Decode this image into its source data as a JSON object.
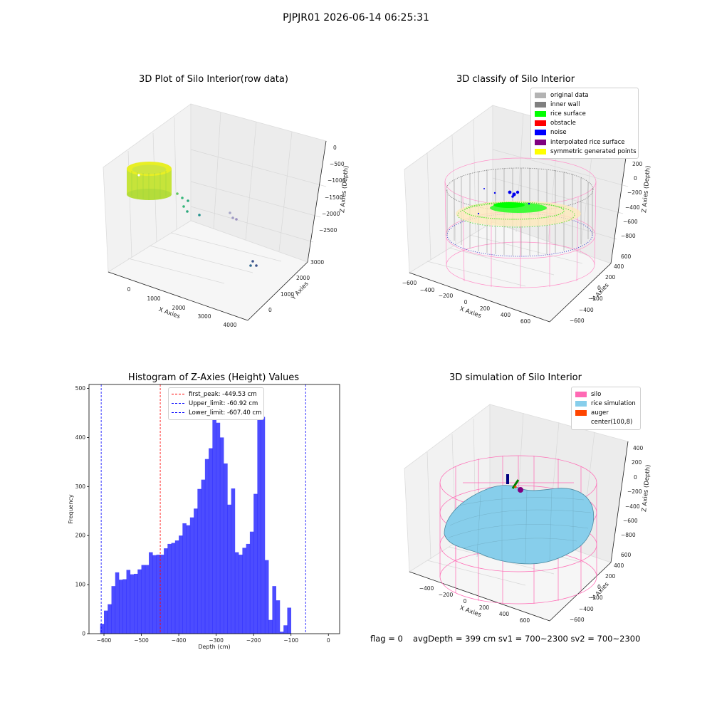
{
  "suptitle": "PJPJR01 2026-06-14 06:25:31",
  "panels": {
    "raw": {
      "title": "3D Plot of Silo Interior(row data)",
      "xlabel": "X Axies",
      "ylabel": "Y Axies",
      "zlabel": "Z Axies (Depth)",
      "x_ticks": [
        "0",
        "1000",
        "2000",
        "3000",
        "4000"
      ],
      "y_ticks": [
        "0",
        "1000",
        "2000",
        "3000"
      ],
      "z_ticks": [
        "0",
        "−500",
        "−1000",
        "−1500",
        "−2000",
        "−2500"
      ]
    },
    "classify": {
      "title": "3D classify of Silo Interior",
      "xlabel": "X Axies",
      "ylabel": "Y Axies",
      "zlabel": "Z Axies (Depth)",
      "x_ticks": [
        "−600",
        "−400",
        "−200",
        "0",
        "200",
        "400",
        "600"
      ],
      "y_ticks": [
        "−600",
        "−400",
        "−200",
        "0",
        "200",
        "400",
        "600"
      ],
      "z_ticks": [
        "200",
        "0",
        "−200",
        "−400",
        "−600",
        "−800"
      ],
      "legend": [
        {
          "label": "original data",
          "color": "#b3b3b3"
        },
        {
          "label": "inner wall",
          "color": "#808080"
        },
        {
          "label": "rice surface",
          "color": "#00ff00"
        },
        {
          "label": "obstacle",
          "color": "#ff0000"
        },
        {
          "label": "noise",
          "color": "#0000ff"
        },
        {
          "label": "interpolated rice surface",
          "color": "#800080"
        },
        {
          "label": "symmetric generated points",
          "color": "#ffff00"
        }
      ]
    },
    "histogram": {
      "title": "Histogram of Z-Axies (Height) Values",
      "legend": [
        {
          "label": "first_peak: -449.53 cm",
          "color": "#ff0000"
        },
        {
          "label": "Upper_limit: -60.92 cm",
          "color": "#0000ff"
        },
        {
          "label": "Lower_limit: -607.40 cm",
          "color": "#0000ff"
        }
      ]
    },
    "simulation": {
      "title": "3D simulation of Silo Interior",
      "xlabel": "X Axies",
      "ylabel": "Y Axies",
      "zlabel": "Z Axies (Depth)",
      "x_ticks": [
        "−400",
        "−200",
        "0",
        "200",
        "400",
        "600"
      ],
      "y_ticks": [
        "−600",
        "−400",
        "−200",
        "0",
        "200",
        "400",
        "600"
      ],
      "z_ticks": [
        "400",
        "200",
        "0",
        "−200",
        "−400",
        "−600",
        "−800"
      ],
      "legend": [
        {
          "label": "silo",
          "color": "#ff69b4"
        },
        {
          "label": "rice simulation",
          "color": "#87ceeb"
        },
        {
          "label": "auger",
          "color": "#ff4500"
        },
        {
          "label": "center(100,8)",
          "color": ""
        }
      ]
    }
  },
  "footer": {
    "flag": "flag = 0",
    "stats": "avgDepth = 399 cm  sv1 = 700~2300  sv2 = 700~2300"
  },
  "chart_data": {
    "type": "bar",
    "title": "Histogram of Z-Axies (Height) Values",
    "xlabel": "Depth (cm)",
    "ylabel": "Frequency",
    "xlim": [
      -640,
      30
    ],
    "ylim": [
      0,
      508
    ],
    "x_ticks": [
      -600,
      -500,
      -400,
      -300,
      -200,
      -100,
      0
    ],
    "y_ticks": [
      0,
      100,
      200,
      300,
      400,
      500
    ],
    "bin_start": -610,
    "bin_width": 10,
    "values": [
      20,
      47,
      60,
      97,
      125,
      110,
      111,
      130,
      121,
      122,
      131,
      140,
      140,
      166,
      160,
      161,
      161,
      174,
      183,
      185,
      190,
      200,
      225,
      221,
      237,
      255,
      295,
      314,
      356,
      378,
      455,
      430,
      400,
      347,
      263,
      296,
      166,
      161,
      175,
      183,
      208,
      285,
      482,
      442,
      150,
      28,
      97,
      68,
      4,
      17,
      53
    ],
    "bar_color": "#0000ff",
    "vlines": [
      {
        "x": -449.53,
        "color": "#ff0000"
      },
      {
        "x": -60.92,
        "color": "#0000ff"
      },
      {
        "x": -607.4,
        "color": "#0000ff"
      }
    ]
  }
}
